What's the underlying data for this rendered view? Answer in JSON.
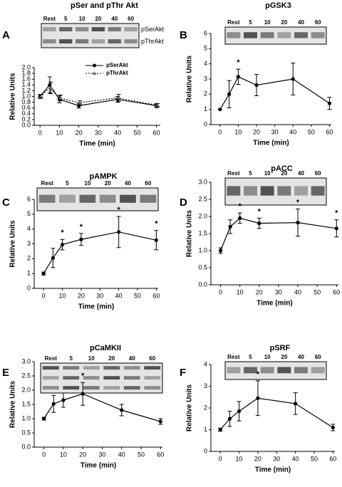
{
  "chart_data": [
    {
      "type": "line",
      "panel": "A",
      "title": "pSer and pThr Akt",
      "x_label": "Time (min)",
      "y_label": "Relative Units",
      "lanes": [
        "Rest",
        "5",
        "10",
        "20",
        "40",
        "60"
      ],
      "color": "#000000",
      "x": [
        0,
        5,
        10,
        20,
        40,
        60
      ],
      "series": [
        {
          "name": "pSerAkt",
          "values": [
            1.0,
            1.4,
            0.9,
            0.68,
            0.9,
            0.68
          ],
          "errors": [
            0.07,
            0.28,
            0.12,
            0.08,
            0.1,
            0.07
          ]
        },
        {
          "name": "pThrAkt",
          "values": [
            1.0,
            1.3,
            0.95,
            0.78,
            0.95,
            0.7
          ],
          "errors": [
            0.06,
            0.2,
            0.1,
            0.07,
            0.12,
            0.06
          ]
        }
      ],
      "xlim": [
        -3,
        62
      ],
      "xticks": [
        0,
        10,
        20,
        30,
        40,
        50,
        60
      ],
      "ylim": [
        0,
        2
      ],
      "yticks": [
        {
          "value": 0,
          "label": "0.0"
        },
        {
          "value": 0.2,
          "label": "0.2"
        },
        {
          "value": 0.4,
          "label": "0.4"
        },
        {
          "value": 0.6,
          "label": "0.6"
        },
        {
          "value": 0.8,
          "label": "0.8"
        },
        {
          "value": 1,
          "label": "1.0"
        },
        {
          "value": 1.2,
          "label": "1.2"
        },
        {
          "value": 1.4,
          "label": "1.4"
        },
        {
          "value": 1.6,
          "label": "1.6"
        },
        {
          "value": 1.8,
          "label": "1.8"
        },
        {
          "value": 2,
          "label": "2.0"
        }
      ],
      "stars": []
    },
    {
      "type": "line",
      "panel": "B",
      "title": "pGSK3",
      "x_label": "Time (min)",
      "y_label": "Relative Units",
      "lanes": [
        "Rest",
        "5",
        "10",
        "20",
        "40",
        "60"
      ],
      "color": "#000000",
      "x": [
        0,
        5,
        10,
        20,
        40,
        60
      ],
      "values": [
        1.0,
        2.0,
        3.15,
        2.6,
        3.0,
        1.4
      ],
      "errors": [
        0.0,
        0.9,
        0.5,
        0.7,
        1.05,
        0.4
      ],
      "xlim": [
        -5,
        61
      ],
      "xticks": [
        0,
        10,
        20,
        30,
        40,
        50,
        60
      ],
      "ylim": [
        0,
        6
      ],
      "yticks": [
        0,
        1,
        2,
        3,
        4,
        5,
        6
      ],
      "stars": [
        {
          "x": 10,
          "label": "*"
        }
      ]
    },
    {
      "type": "line",
      "panel": "C",
      "title": "pAMPK",
      "x_label": "Time (min)",
      "y_label": "Relative Units",
      "lanes": [
        "Rest",
        "5",
        "10",
        "20",
        "40",
        "60"
      ],
      "color": "#000000",
      "x": [
        0,
        5,
        10,
        20,
        40,
        60
      ],
      "values": [
        1.0,
        2.05,
        2.95,
        3.3,
        3.8,
        3.25
      ],
      "errors": [
        0.1,
        0.65,
        0.35,
        0.4,
        1.05,
        0.65
      ],
      "xlim": [
        -5,
        61
      ],
      "xticks": [
        0,
        10,
        20,
        30,
        40,
        50,
        60
      ],
      "ylim": [
        0,
        6
      ],
      "yticks": [
        0,
        1,
        2,
        3,
        4,
        5,
        6
      ],
      "stars": [
        {
          "x": 10,
          "label": "*"
        },
        {
          "x": 20,
          "label": "*"
        },
        {
          "x": 40,
          "label": "*"
        },
        {
          "x": 60,
          "label": "*"
        }
      ]
    },
    {
      "type": "line",
      "panel": "D",
      "title": "pACC",
      "x_label": "Time (min)",
      "y_label": "Relative Units",
      "lanes": [
        "Rest",
        "5",
        "10",
        "20",
        "40",
        "60"
      ],
      "color": "#000000",
      "x": [
        0,
        5,
        10,
        20,
        40,
        60
      ],
      "values": [
        1.0,
        1.7,
        1.95,
        1.8,
        1.82,
        1.65
      ],
      "errors": [
        0.08,
        0.2,
        0.15,
        0.15,
        0.4,
        0.25
      ],
      "xlim": [
        -5,
        61
      ],
      "xticks": [
        0,
        10,
        20,
        30,
        40,
        50,
        60
      ],
      "ylim": [
        0,
        3
      ],
      "yticks": [
        {
          "value": 0,
          "label": "0.0"
        },
        {
          "value": 0.5,
          "label": "0.5"
        },
        {
          "value": 1,
          "label": "1.0"
        },
        {
          "value": 1.5,
          "label": "1.5"
        },
        {
          "value": 2,
          "label": "2.0"
        },
        {
          "value": 2.5,
          "label": "2.5"
        },
        {
          "value": 3,
          "label": "3.0"
        }
      ],
      "stars": [
        {
          "x": 10,
          "label": "*"
        },
        {
          "x": 20,
          "label": "*"
        },
        {
          "x": 40,
          "label": "*"
        },
        {
          "x": 60,
          "label": "*"
        }
      ]
    },
    {
      "type": "line",
      "panel": "E",
      "title": "pCaMKII",
      "x_label": "Time (min)",
      "y_label": "Relative Units",
      "lanes": [
        "Rest",
        "5",
        "10",
        "20",
        "40",
        "60"
      ],
      "color": "#000000",
      "x": [
        0,
        5,
        10,
        20,
        40,
        60
      ],
      "values": [
        1.0,
        1.52,
        1.65,
        1.87,
        1.3,
        0.9
      ],
      "errors": [
        0.05,
        0.3,
        0.25,
        0.4,
        0.2,
        0.1
      ],
      "xlim": [
        -5,
        61
      ],
      "xticks": [
        0,
        10,
        20,
        30,
        40,
        50,
        60
      ],
      "ylim": [
        0,
        3
      ],
      "yticks": [
        {
          "value": 0,
          "label": "0.0"
        },
        {
          "value": 0.5,
          "label": "0.5"
        },
        {
          "value": 1,
          "label": "1.0"
        },
        {
          "value": 1.5,
          "label": "1.5"
        },
        {
          "value": 2,
          "label": "2.0"
        },
        {
          "value": 2.5,
          "label": "2.5"
        },
        {
          "value": 3,
          "label": "3.0"
        }
      ],
      "stars": [
        {
          "x": 20,
          "label": "*"
        }
      ]
    },
    {
      "type": "line",
      "panel": "F",
      "title": "pSRF",
      "x_label": "Time (min)",
      "y_label": "Relative Units",
      "lanes": [
        "Rest",
        "5",
        "10",
        "20",
        "40",
        "60"
      ],
      "color": "#000000",
      "x": [
        0,
        5,
        10,
        20,
        40,
        60
      ],
      "values": [
        1.0,
        1.5,
        1.85,
        2.45,
        2.2,
        1.1
      ],
      "errors": [
        0.07,
        0.35,
        0.45,
        0.8,
        0.5,
        0.15
      ],
      "xlim": [
        -5,
        61
      ],
      "xticks": [
        0,
        10,
        20,
        30,
        40,
        50,
        60
      ],
      "ylim": [
        0,
        4
      ],
      "yticks": [
        0,
        1,
        2,
        3,
        4
      ],
      "stars": [
        {
          "x": 20,
          "label": "*"
        }
      ]
    }
  ]
}
